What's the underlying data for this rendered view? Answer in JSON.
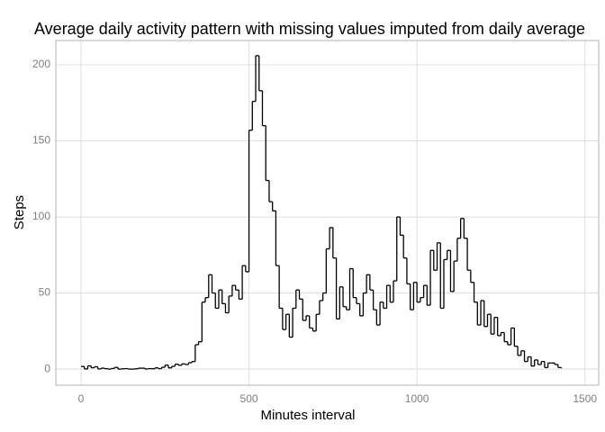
{
  "chart_data": {
    "type": "step",
    "title": "Average daily activity pattern with missing values imputed from daily average",
    "x_label": "Minutes interval",
    "y_label": "Steps",
    "x": [
      0,
      10,
      20,
      30,
      40,
      50,
      60,
      70,
      80,
      90,
      100,
      110,
      120,
      130,
      140,
      150,
      160,
      170,
      180,
      190,
      200,
      210,
      220,
      230,
      240,
      250,
      260,
      270,
      280,
      290,
      300,
      310,
      320,
      330,
      340,
      350,
      360,
      370,
      380,
      390,
      400,
      410,
      420,
      430,
      440,
      450,
      460,
      470,
      480,
      490,
      500,
      510,
      520,
      530,
      540,
      550,
      560,
      570,
      580,
      590,
      600,
      610,
      620,
      630,
      640,
      650,
      660,
      670,
      680,
      690,
      700,
      710,
      720,
      730,
      740,
      750,
      760,
      770,
      780,
      790,
      800,
      810,
      820,
      830,
      840,
      850,
      860,
      870,
      880,
      890,
      900,
      910,
      920,
      930,
      940,
      950,
      960,
      970,
      980,
      990,
      1000,
      1010,
      1020,
      1030,
      1040,
      1050,
      1060,
      1070,
      1080,
      1090,
      1100,
      1110,
      1120,
      1130,
      1140,
      1150,
      1160,
      1170,
      1180,
      1190,
      1200,
      1210,
      1220,
      1230,
      1240,
      1250,
      1260,
      1270,
      1280,
      1290,
      1300,
      1310,
      1320,
      1330,
      1340,
      1350,
      1360,
      1370,
      1380,
      1390,
      1400,
      1410,
      1420,
      1430
    ],
    "values": [
      1.7,
      0.1,
      2.1,
      0.9,
      1.5,
      0.1,
      0.6,
      0.3,
      0,
      0.4,
      1.1,
      0,
      0.2,
      0.3,
      0,
      0,
      0.2,
      0.6,
      0.6,
      0.1,
      0.3,
      0.2,
      0.8,
      0.3,
      1.2,
      2.6,
      0.8,
      1.8,
      3.2,
      2.5,
      3.4,
      3.0,
      4.2,
      5.0,
      16,
      18,
      44,
      47,
      62,
      50,
      40,
      52,
      43,
      37,
      48,
      55,
      52,
      46,
      68,
      64,
      157,
      176,
      206,
      183,
      160,
      124,
      110,
      104,
      68,
      40,
      26,
      36,
      21,
      40,
      52,
      46,
      32,
      35,
      27,
      25,
      36,
      45,
      50,
      79,
      93,
      73,
      33,
      54,
      41,
      39,
      66,
      47,
      43,
      35,
      50,
      62,
      52,
      39,
      29,
      44,
      40,
      55,
      44,
      58,
      100,
      88,
      73,
      56,
      39,
      57,
      44,
      47,
      55,
      42,
      78,
      65,
      83,
      40,
      72,
      78,
      51,
      71,
      86,
      99,
      86,
      65,
      57,
      44,
      29,
      45,
      28,
      36,
      23,
      34,
      22,
      24,
      18,
      16,
      27,
      15,
      9,
      12,
      5,
      8,
      2,
      6,
      3,
      5,
      1,
      4,
      4,
      3,
      1,
      0.5
    ],
    "color": "#000000",
    "xlim": [
      -75,
      1541
    ],
    "xticks": [
      0,
      500,
      1000,
      1500
    ],
    "ylim": [
      -10.6,
      216
    ],
    "yticks": [
      0,
      50,
      100,
      150,
      200
    ],
    "grid": true
  }
}
